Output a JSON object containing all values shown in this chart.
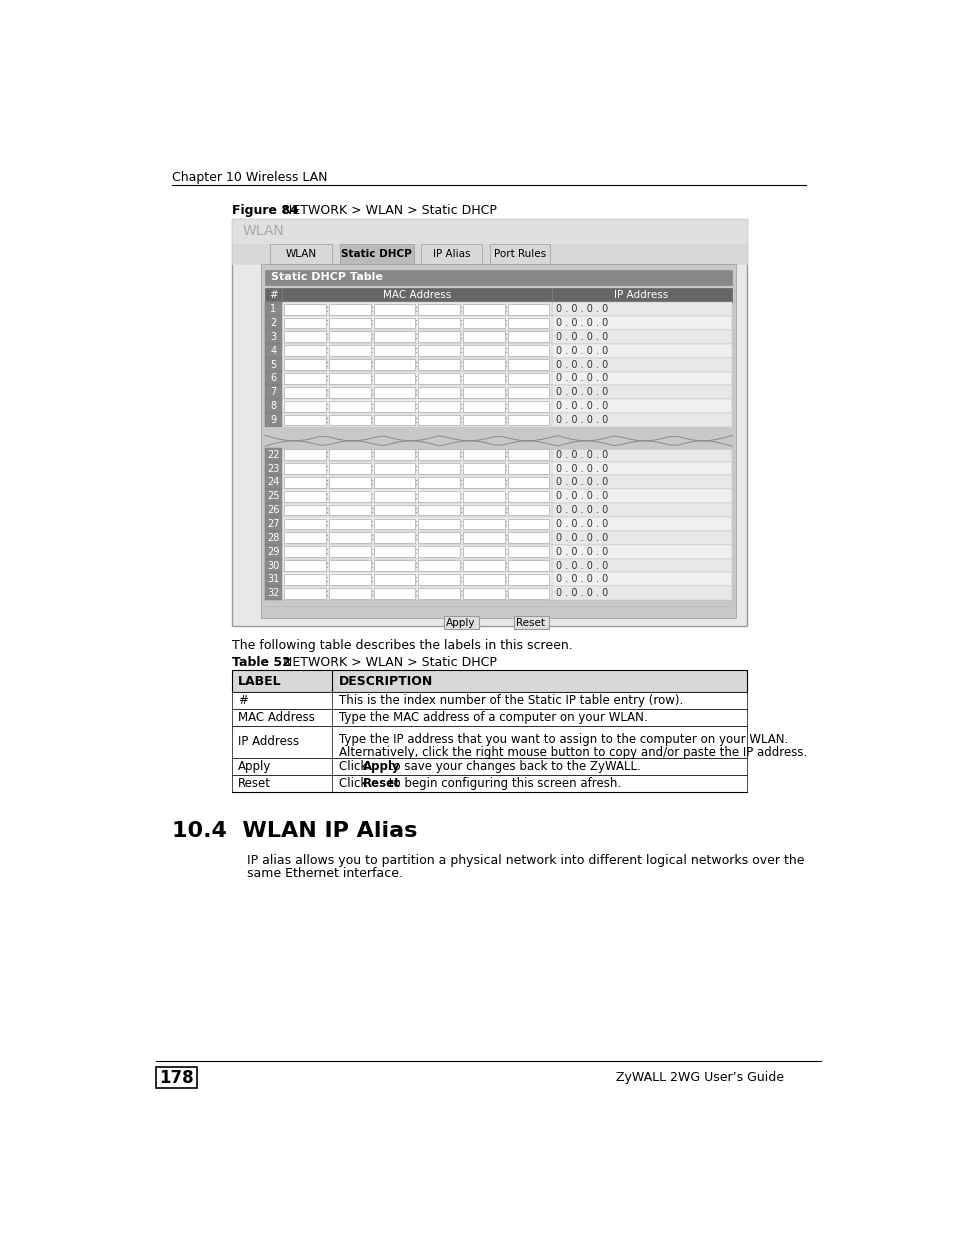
{
  "page_bg": "#ffffff",
  "chapter_header": "Chapter 10 Wireless LAN",
  "figure_label": "Figure 84",
  "figure_title": "   NETWORK > WLAN > Static DHCP",
  "wlan_title": "WLAN",
  "tabs": [
    "WLAN",
    "Static DHCP",
    "IP Alias",
    "Port Rules"
  ],
  "active_tab": 1,
  "section_header": "Static DHCP Table",
  "col_headers": [
    "#",
    "MAC Address",
    "IP Address"
  ],
  "rows_top": [
    "1",
    "2",
    "3",
    "4",
    "5",
    "6",
    "7",
    "8",
    "9"
  ],
  "rows_bottom": [
    "22",
    "23",
    "24",
    "25",
    "26",
    "27",
    "28",
    "29",
    "30",
    "31",
    "32"
  ],
  "ip_value": "0 . 0 . 0 . 0",
  "table52_intro": "The following table describes the labels in this screen.",
  "table52_label": "Table 52",
  "table52_title": "   NETWORK > WLAN > Static DHCP",
  "table_headers": [
    "LABEL",
    "DESCRIPTION"
  ],
  "table_rows": [
    [
      "#",
      "This is the index number of the Static IP table entry (row)."
    ],
    [
      "MAC Address",
      "Type the MAC address of a computer on your WLAN."
    ],
    [
      "IP Address",
      "Type the IP address that you want to assign to the computer on your WLAN.\nAlternatively, click the right mouse button to copy and/or paste the IP address."
    ],
    [
      "Apply",
      "Click Apply to save your changes back to the ZyWALL."
    ],
    [
      "Reset",
      "Click Reset to begin configuring this screen afresh."
    ]
  ],
  "section_title": "10.4  WLAN IP Alias",
  "section_body_line1": "IP alias allows you to partition a physical network into different logical networks over the",
  "section_body_line2": "same Ethernet interface.",
  "page_number": "178",
  "footer_text": "ZyWALL 2WG User’s Guide",
  "colors": {
    "outer_frame_bg": "#e8e8e8",
    "outer_frame_border": "#999999",
    "wlan_header_bg": "#e0e0e0",
    "wlan_header_text": "#aaaaaa",
    "tab_bar_bg": "#d8d8d8",
    "active_tab_bg": "#bbbbbb",
    "inactive_tab_bg": "#d8d8d8",
    "inner_content_bg": "#c8c8c8",
    "section_hdr_bg": "#888888",
    "col_hdr_bg": "#666666",
    "row_num_bg": "#888888",
    "row_alt1": "#e8e8e8",
    "row_alt2": "#f0f0f0",
    "input_box": "#ffffff",
    "ip_text": "#333333",
    "separator": "#aaaaaa",
    "button_bg": "#e0e0e0",
    "button_border": "#999999",
    "table52_hdr_bg": "#d8d8d8",
    "table52_border": "#000000",
    "text_white": "#ffffff",
    "text_black": "#000000",
    "text_gray_row": "#555555"
  }
}
